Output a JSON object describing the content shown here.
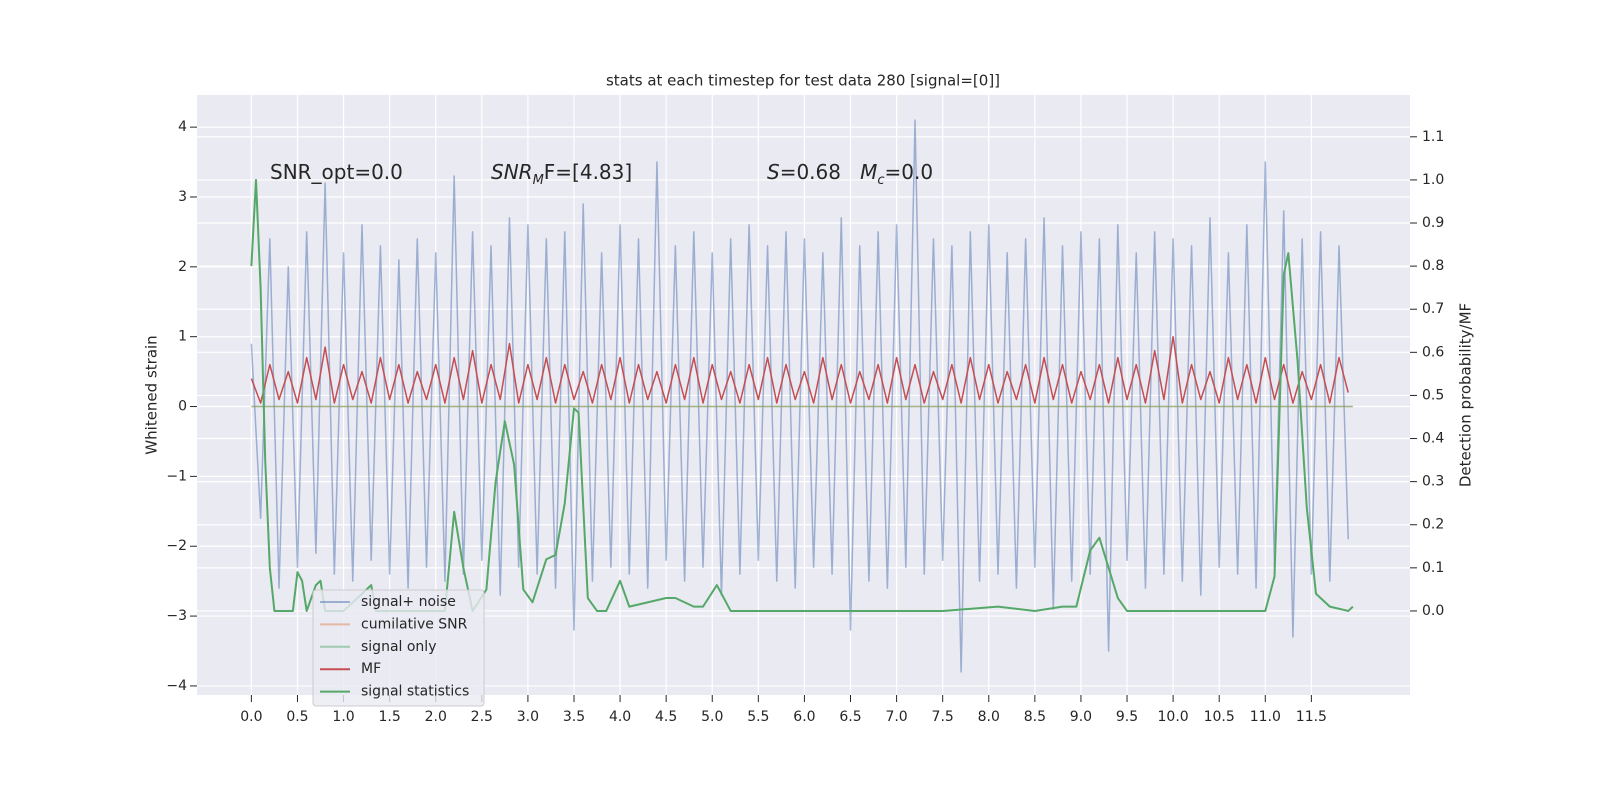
{
  "chart_data": {
    "type": "line",
    "title": "stats at each timestep for test data 280 [signal=[0]]",
    "ylabel": "Whitened strain",
    "y2label": "Detection probability/MF",
    "xlim": [
      -0.59,
      12.57
    ],
    "ylim": [
      -4.13,
      4.46
    ],
    "y2lim": [
      -0.195,
      1.197
    ],
    "xticks": [
      {
        "value": 0,
        "label": "0.0"
      },
      0.5,
      {
        "value": 1,
        "label": "1.0"
      },
      1.5,
      {
        "value": 2,
        "label": "2.0"
      },
      2.5,
      {
        "value": 3,
        "label": "3.0"
      },
      3.5,
      {
        "value": 4,
        "label": "4.0"
      },
      4.5,
      {
        "value": 5,
        "label": "5.0"
      },
      5.5,
      {
        "value": 6,
        "label": "6.0"
      },
      6.5,
      {
        "value": 7,
        "label": "7.0"
      },
      7.5,
      {
        "value": 8,
        "label": "8.0"
      },
      8.5,
      {
        "value": 9,
        "label": "9.0"
      },
      9.5,
      {
        "value": 10,
        "label": "10.0"
      },
      10.5,
      {
        "value": 11,
        "label": "11.0"
      },
      11.5
    ],
    "yticks": [
      {
        "value": -4,
        "label": "−4"
      },
      {
        "value": -3,
        "label": "−3"
      },
      {
        "value": -2,
        "label": "−2"
      },
      {
        "value": -1,
        "label": "−1"
      },
      0,
      1,
      2,
      3,
      4
    ],
    "y2ticks": [
      {
        "value": 0,
        "label": "0.0"
      },
      0.1,
      0.2,
      0.3,
      0.4,
      0.5,
      0.6,
      0.7,
      0.8,
      0.9,
      {
        "value": 1,
        "label": "1.0"
      },
      1.1
    ],
    "grid": true,
    "legend": "lower left",
    "annotations": [
      {
        "parts": [
          {
            "text": "SNR_opt=0.0"
          }
        ]
      },
      {
        "parts": [
          {
            "text": "SNR",
            "italic": true
          },
          {
            "text": "M",
            "italic": true,
            "sub": true
          },
          {
            "text": "F=[4.83]"
          }
        ]
      },
      {
        "parts": [
          {
            "text": "S",
            "italic": true
          },
          {
            "text": "=0.68   "
          },
          {
            "text": "M",
            "italic": true
          },
          {
            "text": "c",
            "italic": true,
            "sub": true
          },
          {
            "text": "=0.0"
          }
        ]
      }
    ],
    "x": [
      0,
      0.1,
      0.2,
      0.3,
      0.4,
      0.5,
      0.6,
      0.7,
      0.8,
      0.9,
      1,
      1.1,
      1.2,
      1.3,
      1.4,
      1.5,
      1.6,
      1.7,
      1.8,
      1.9,
      2,
      2.1,
      2.2,
      2.3,
      2.4,
      2.5,
      2.6,
      2.7,
      2.8,
      2.9,
      3,
      3.1,
      3.2,
      3.3,
      3.4,
      3.5,
      3.6,
      3.7,
      3.8,
      3.9,
      4,
      4.1,
      4.2,
      4.3,
      4.4,
      4.5,
      4.6,
      4.7,
      4.8,
      4.9,
      5,
      5.1,
      5.2,
      5.3,
      5.4,
      5.5,
      5.6,
      5.7,
      5.8,
      5.9,
      6,
      6.1,
      6.2,
      6.3,
      6.4,
      6.5,
      6.6,
      6.7,
      6.8,
      6.9,
      7,
      7.1,
      7.2,
      7.3,
      7.4,
      7.5,
      7.6,
      7.7,
      7.8,
      7.9,
      8,
      8.1,
      8.2,
      8.3,
      8.4,
      8.5,
      8.6,
      8.7,
      8.8,
      8.9,
      9,
      9.1,
      9.2,
      9.3,
      9.4,
      9.5,
      9.6,
      9.7,
      9.8,
      9.9,
      10,
      10.1,
      10.2,
      10.3,
      10.4,
      10.5,
      10.6,
      10.7,
      10.8,
      10.9,
      11,
      11.1,
      11.2,
      11.3,
      11.4,
      11.5,
      11.6,
      11.7,
      11.8,
      11.9
    ],
    "series": [
      {
        "name": "signal+ noise",
        "color": "#4c72b0",
        "alpha": 0.5,
        "values": [
          0.9,
          -1.6,
          2.4,
          -2.6,
          2.0,
          -2.3,
          2.5,
          -2.1,
          3.2,
          -2.4,
          2.2,
          -2.5,
          2.6,
          -2.2,
          2.3,
          -2.4,
          2.1,
          -2.6,
          2.4,
          -2.3,
          2.2,
          -2.5,
          3.3,
          -2.4,
          2.5,
          -2.2,
          2.3,
          -2.7,
          2.7,
          -2.3,
          2.6,
          -2.4,
          2.4,
          -2.6,
          2.5,
          -3.2,
          2.9,
          -2.5,
          2.2,
          -2.3,
          2.6,
          -2.4,
          2.4,
          -2.6,
          3.5,
          -2.2,
          2.3,
          -2.5,
          2.5,
          -2.3,
          2.2,
          -2.7,
          2.4,
          -2.4,
          2.6,
          -2.2,
          2.3,
          -2.5,
          2.5,
          -2.6,
          2.4,
          -2.3,
          2.2,
          -2.4,
          2.7,
          -3.2,
          2.3,
          -2.5,
          2.5,
          -2.6,
          2.6,
          -2.3,
          4.1,
          -2.4,
          2.4,
          -2.2,
          2.3,
          -3.8,
          2.5,
          -2.5,
          2.6,
          -2.4,
          2.2,
          -2.6,
          2.4,
          -2.3,
          2.7,
          -2.9,
          2.3,
          -2.5,
          2.5,
          -2.4,
          2.4,
          -3.5,
          2.6,
          -2.2,
          2.2,
          -2.6,
          2.5,
          -2.4,
          2.4,
          -2.5,
          2.3,
          -2.7,
          2.7,
          -2.3,
          2.2,
          -2.4,
          2.6,
          -2.6,
          3.5,
          -2.3,
          2.8,
          -3.3,
          2.4,
          -2.4,
          2.5,
          -2.5,
          2.3,
          -1.9
        ]
      },
      {
        "name": "cumilative SNR",
        "color": "#dd8452",
        "alpha": 0.5,
        "x": [
          0,
          11.95
        ],
        "values": [
          0,
          0
        ]
      },
      {
        "name": "signal only",
        "color": "#55a868",
        "alpha": 0.5,
        "x": [
          0,
          11.95
        ],
        "values": [
          0,
          0
        ]
      },
      {
        "name": "MF",
        "color": "#c44e52",
        "alpha": 1,
        "values": [
          0.4,
          0.05,
          0.6,
          0.1,
          0.5,
          0.05,
          0.7,
          0.1,
          0.85,
          0.05,
          0.6,
          0.1,
          0.5,
          0.05,
          0.7,
          0.1,
          0.6,
          0.05,
          0.5,
          0.1,
          0.6,
          0.05,
          0.7,
          0.1,
          0.8,
          0.05,
          0.6,
          0.1,
          0.9,
          0.05,
          0.6,
          0.1,
          0.7,
          0.05,
          0.6,
          0.1,
          0.5,
          0.05,
          0.6,
          0.1,
          0.7,
          0.05,
          0.6,
          0.1,
          0.5,
          0.05,
          0.6,
          0.1,
          0.7,
          0.05,
          0.6,
          0.1,
          0.5,
          0.05,
          0.6,
          0.1,
          0.7,
          0.05,
          0.6,
          0.1,
          0.5,
          0.05,
          0.7,
          0.1,
          0.6,
          0.05,
          0.5,
          0.1,
          0.6,
          0.05,
          0.7,
          0.1,
          0.6,
          0.05,
          0.5,
          0.1,
          0.6,
          0.05,
          0.7,
          0.1,
          0.6,
          0.05,
          0.5,
          0.1,
          0.6,
          0.05,
          0.7,
          0.1,
          0.6,
          0.05,
          0.5,
          0.1,
          0.6,
          0.05,
          0.7,
          0.1,
          0.6,
          0.05,
          0.8,
          0.1,
          1.0,
          0.05,
          0.6,
          0.1,
          0.5,
          0.05,
          0.7,
          0.1,
          0.6,
          0.05,
          0.7,
          0.1,
          0.6,
          0.05,
          0.5,
          0.1,
          0.6,
          0.05,
          0.7,
          0.2
        ]
      },
      {
        "name": "signal statistics",
        "color": "#55a868",
        "alpha": 1,
        "axis": "y2",
        "x": [
          0,
          0.05,
          0.1,
          0.15,
          0.2,
          0.25,
          0.4,
          0.45,
          0.5,
          0.55,
          0.6,
          0.7,
          0.75,
          0.8,
          1.0,
          1.3,
          1.35,
          2.0,
          2.1,
          2.2,
          2.3,
          2.4,
          2.55,
          2.65,
          2.75,
          2.85,
          2.95,
          3.05,
          3.2,
          3.3,
          3.4,
          3.5,
          3.55,
          3.65,
          3.75,
          3.85,
          4.0,
          4.1,
          4.5,
          4.6,
          4.8,
          4.9,
          5.05,
          5.2,
          5.4,
          6.0,
          6.5,
          7.0,
          7.5,
          8.1,
          8.5,
          8.8,
          8.95,
          9.1,
          9.2,
          9.3,
          9.4,
          9.5,
          10.0,
          10.5,
          11.0,
          11.1,
          11.2,
          11.25,
          11.35,
          11.45,
          11.55,
          11.7,
          11.9,
          11.95
        ],
        "values": [
          0.8,
          1.0,
          0.75,
          0.35,
          0.1,
          0.0,
          0.0,
          0.0,
          0.09,
          0.07,
          0.0,
          0.06,
          0.07,
          0.0,
          0.0,
          0.06,
          0.0,
          0.0,
          0.0,
          0.23,
          0.1,
          0.0,
          0.05,
          0.3,
          0.44,
          0.34,
          0.05,
          0.02,
          0.12,
          0.13,
          0.25,
          0.47,
          0.46,
          0.03,
          0.0,
          0.0,
          0.07,
          0.01,
          0.03,
          0.03,
          0.01,
          0.01,
          0.06,
          0.0,
          0.0,
          0.0,
          0.0,
          0.0,
          0.0,
          0.01,
          0.0,
          0.01,
          0.01,
          0.14,
          0.17,
          0.1,
          0.03,
          0.0,
          0.0,
          0.0,
          0.0,
          0.08,
          0.78,
          0.83,
          0.58,
          0.24,
          0.04,
          0.01,
          0.0,
          0.01
        ]
      }
    ]
  }
}
